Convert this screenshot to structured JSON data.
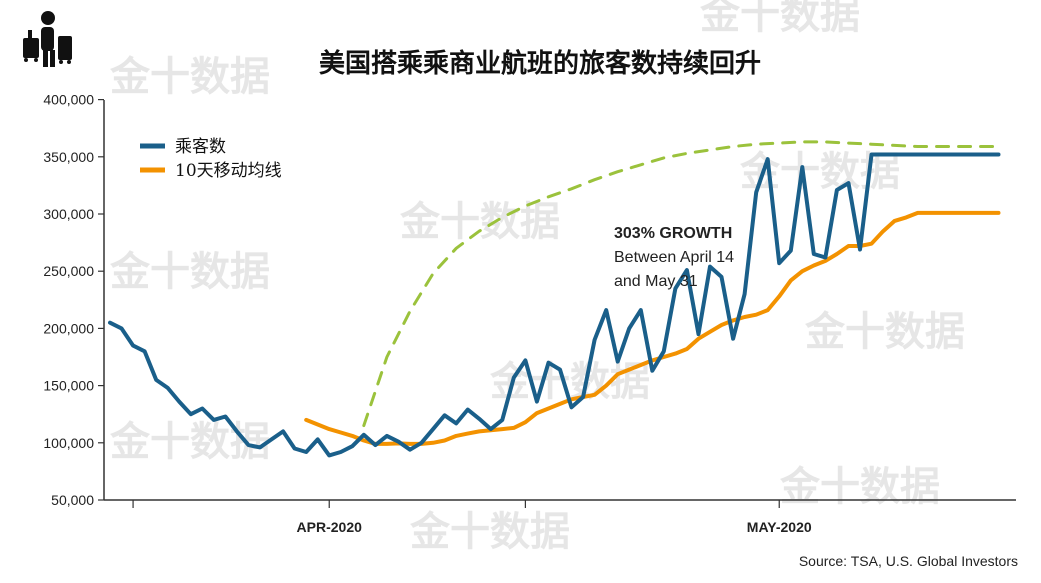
{
  "chart_data": {
    "type": "line",
    "title": "美国搭乘乘商业航班的旅客数持续回升",
    "ylim": [
      50000,
      400000
    ],
    "yticks": [
      50000,
      100000,
      150000,
      200000,
      250000,
      300000,
      350000,
      400000
    ],
    "ytick_labels": [
      "50,000",
      "100,000",
      "150,000",
      "200,000",
      "250,000",
      "300,000",
      "350,000",
      "400,000"
    ],
    "xlim": [
      0,
      78
    ],
    "xticks": [
      2,
      19,
      36,
      58
    ],
    "xtick_labels": [
      "",
      "APR-2020",
      "",
      "MAY-2020"
    ],
    "grid": false,
    "legend_position": "top-left",
    "series": [
      {
        "name": "乘客数",
        "color": "#1a5f8a",
        "x": [
          0,
          1,
          2,
          3,
          4,
          5,
          6,
          7,
          8,
          9,
          10,
          11,
          12,
          13,
          14,
          15,
          16,
          17,
          18,
          19,
          20,
          21,
          22,
          23,
          24,
          25,
          26,
          27,
          28,
          29,
          30,
          31,
          32,
          33,
          34,
          35,
          36,
          37,
          38,
          39,
          40,
          41,
          42,
          43,
          44,
          45,
          46,
          47,
          48,
          49,
          50,
          51,
          52,
          53,
          54,
          55,
          56,
          57,
          58,
          59,
          60,
          61,
          62,
          63,
          64,
          65,
          66,
          67,
          68,
          69,
          70,
          71,
          72,
          73,
          74,
          75,
          76,
          77
        ],
        "values": [
          205000,
          200000,
          185000,
          180000,
          155000,
          148000,
          136000,
          125000,
          130000,
          120000,
          123000,
          110000,
          98000,
          96000,
          103000,
          110000,
          95000,
          92000,
          103000,
          89000,
          92000,
          97000,
          107000,
          98000,
          106000,
          101000,
          94000,
          100000,
          112000,
          124000,
          117000,
          129000,
          121000,
          112000,
          120000,
          157000,
          172000,
          136000,
          170000,
          164000,
          131000,
          140000,
          190000,
          216000,
          171000,
          200000,
          216000,
          163000,
          180000,
          235000,
          251000,
          195000,
          254000,
          245000,
          191000,
          230000,
          319000,
          348000,
          257000,
          268000,
          341000,
          265000,
          262000,
          321000,
          327000,
          269000,
          352000,
          352000,
          352000,
          352000,
          352000,
          352000,
          352000,
          352000,
          352000,
          352000,
          352000,
          352000
        ]
      },
      {
        "name": "10天移动均线",
        "color": "#f39200",
        "x": [
          17,
          18,
          19,
          20,
          21,
          22,
          23,
          24,
          25,
          26,
          27,
          28,
          29,
          30,
          31,
          32,
          33,
          34,
          35,
          36,
          37,
          38,
          39,
          40,
          41,
          42,
          43,
          44,
          45,
          46,
          47,
          48,
          49,
          50,
          51,
          52,
          53,
          54,
          55,
          56,
          57,
          58,
          59,
          60,
          61,
          62,
          63,
          64,
          65,
          66,
          67,
          68,
          69,
          70,
          71,
          72,
          73,
          74,
          75,
          76,
          77
        ],
        "values": [
          120000,
          116000,
          112000,
          109000,
          106000,
          102000,
          99000,
          99000,
          99500,
          99000,
          99000,
          100000,
          102000,
          106000,
          108000,
          110000,
          111000,
          112000,
          113000,
          118000,
          126000,
          130000,
          134000,
          138000,
          140000,
          142000,
          150000,
          160000,
          164000,
          168000,
          172000,
          175000,
          178000,
          182000,
          191000,
          197000,
          203000,
          207000,
          210000,
          212000,
          216000,
          228000,
          242000,
          250000,
          255000,
          259000,
          265000,
          272000,
          272000,
          274000,
          285000,
          294000,
          297000,
          301000,
          301000,
          301000,
          301000,
          301000,
          301000,
          301000,
          301000
        ]
      },
      {
        "name": "trend",
        "color": "#9bc23c",
        "dashed": true,
        "x": [
          22,
          24,
          26,
          28,
          30,
          32,
          34,
          36,
          38,
          40,
          42,
          44,
          46,
          48,
          50,
          52,
          54,
          56,
          58,
          60,
          62,
          64,
          66,
          68,
          70,
          72,
          74,
          76,
          77
        ],
        "values": [
          115000,
          175000,
          215000,
          248000,
          270000,
          285000,
          297000,
          307000,
          315000,
          322000,
          330000,
          337000,
          343000,
          349000,
          353000,
          356000,
          359000,
          361000,
          362000,
          363000,
          363000,
          362000,
          361000,
          360000,
          359000,
          359000,
          359000,
          359000,
          359000
        ]
      }
    ],
    "annotations": [
      {
        "lines": [
          "303% GROWTH",
          "Between April 14",
          "and May 31"
        ]
      }
    ],
    "source": "Source: TSA, U.S. Global Investors"
  },
  "legend": {
    "items": [
      "乘客数",
      "10天移动均线"
    ]
  },
  "watermark": "金十数据"
}
